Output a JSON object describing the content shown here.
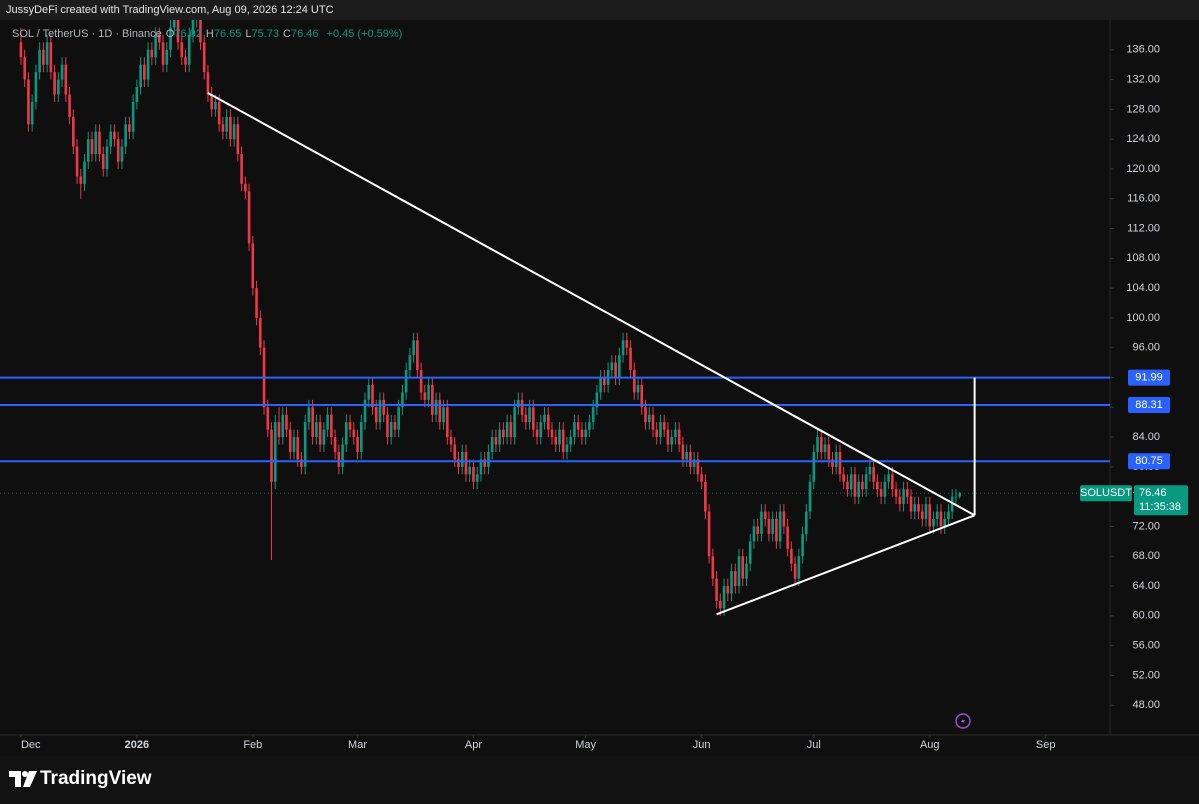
{
  "header": {
    "text": "JussyDeFi created with TradingView.com, Aug 09, 2026 12:24 UTC"
  },
  "chart_data": {
    "type": "candlestick",
    "symbol": "SOL / TetherUS · 1D · Binance",
    "legend": [
      {
        "label": "O",
        "value": 76.02
      },
      {
        "label": "H",
        "value": 76.65
      },
      {
        "label": "L",
        "value": 75.73
      },
      {
        "label": "C",
        "value": 76.46
      }
    ],
    "change": "+0.45 (+0.59%)",
    "up_color": "#089981",
    "down_color": "#f23645",
    "ylim": [
      44,
      140
    ],
    "xlim": [
      -5.6,
      291.2
    ],
    "yticks": [
      {
        "value": 48,
        "label": "48.00"
      },
      {
        "value": 52,
        "label": "52.00"
      },
      {
        "value": 56,
        "label": "56.00"
      },
      {
        "value": 60,
        "label": "60.00"
      },
      {
        "value": 64,
        "label": "64.00"
      },
      {
        "value": 68,
        "label": "68.00"
      },
      {
        "value": 72,
        "label": "72.00"
      },
      {
        "value": 76,
        "label": "76.00"
      },
      {
        "value": 80,
        "label": "80.00"
      },
      {
        "value": 84,
        "label": "84.00"
      },
      {
        "value": 88,
        "label": "88.00"
      },
      {
        "value": 92,
        "label": "92.00"
      },
      {
        "value": 96,
        "label": "96.00"
      },
      {
        "value": 100,
        "label": "100.00"
      },
      {
        "value": 104,
        "label": "104.00"
      },
      {
        "value": 108,
        "label": "108.00"
      },
      {
        "value": 112,
        "label": "112.00"
      },
      {
        "value": 116,
        "label": "116.00"
      },
      {
        "value": 120,
        "label": "120.00"
      },
      {
        "value": 124,
        "label": "124.00"
      },
      {
        "value": 128,
        "label": "128.00"
      },
      {
        "value": 132,
        "label": "132.00"
      },
      {
        "value": 136,
        "label": "136.00"
      }
    ],
    "xticks": [
      {
        "value": 0,
        "label": "Dec"
      },
      {
        "value": 31,
        "label": "2026"
      },
      {
        "value": 62,
        "label": "Feb"
      },
      {
        "value": 90,
        "label": "Mar"
      },
      {
        "value": 121,
        "label": "Apr"
      },
      {
        "value": 151,
        "label": "May"
      },
      {
        "value": 182,
        "label": "Jun"
      },
      {
        "value": 212,
        "label": "Jul"
      },
      {
        "value": 243,
        "label": "Aug"
      },
      {
        "value": 274,
        "label": "Sep"
      }
    ],
    "levels": [
      91.99,
      88.31,
      80.75
    ],
    "level_color": "#2962ff",
    "trendlines": [
      [
        [
          50,
          130.2
        ],
        [
          255,
          73.5
        ]
      ],
      [
        [
          186,
          60.2
        ],
        [
          255,
          73.5
        ]
      ],
      [
        [
          255,
          91.99
        ],
        [
          255,
          73.5
        ]
      ]
    ],
    "last_price": {
      "symbol": "SOLUSDT",
      "value": 76.46,
      "countdown": "11:35:38"
    },
    "ohlc": [
      [
        137,
        139,
        134,
        135
      ],
      [
        135,
        136,
        131,
        132
      ],
      [
        132,
        133,
        125,
        126
      ],
      [
        126,
        130,
        125,
        129
      ],
      [
        129,
        134,
        128,
        133
      ],
      [
        133,
        137,
        132,
        136
      ],
      [
        136,
        137,
        133,
        134
      ],
      [
        134,
        138,
        133,
        137
      ],
      [
        137,
        138,
        132,
        133
      ],
      [
        133,
        134,
        129,
        130
      ],
      [
        130,
        133,
        129,
        132
      ],
      [
        132,
        135,
        131,
        134
      ],
      [
        134,
        135,
        129,
        130
      ],
      [
        130,
        131,
        126,
        127
      ],
      [
        127,
        128,
        122,
        123
      ],
      [
        123,
        124,
        118,
        119
      ],
      [
        119,
        120,
        116,
        118
      ],
      [
        118,
        122,
        117,
        121
      ],
      [
        121,
        125,
        120,
        124
      ],
      [
        124,
        125,
        121,
        122
      ],
      [
        122,
        126,
        121,
        125
      ],
      [
        125,
        126,
        121,
        122
      ],
      [
        122,
        123,
        119,
        120
      ],
      [
        120,
        124,
        119,
        123
      ],
      [
        123,
        126,
        122,
        125
      ],
      [
        125,
        126,
        123,
        124
      ],
      [
        124,
        125,
        120,
        121
      ],
      [
        121,
        124,
        120,
        123
      ],
      [
        123,
        127,
        122,
        126
      ],
      [
        126,
        127,
        124,
        125
      ],
      [
        125,
        130,
        124,
        129
      ],
      [
        129,
        132,
        128,
        131
      ],
      [
        131,
        135,
        130,
        134
      ],
      [
        134,
        135,
        131,
        132
      ],
      [
        132,
        137,
        131,
        136
      ],
      [
        136,
        137,
        134,
        135
      ],
      [
        135,
        139,
        134,
        138
      ],
      [
        138,
        139,
        136,
        137
      ],
      [
        137,
        138,
        133,
        134
      ],
      [
        134,
        137,
        133,
        136
      ],
      [
        136,
        140,
        135,
        139
      ],
      [
        139,
        141,
        138,
        140
      ],
      [
        140,
        141,
        136,
        137
      ],
      [
        137,
        138,
        134,
        135
      ],
      [
        135,
        136,
        133,
        134
      ],
      [
        134,
        139,
        133,
        138
      ],
      [
        138,
        141,
        137,
        140
      ],
      [
        140,
        142,
        139,
        141
      ],
      [
        141,
        142,
        136,
        137
      ],
      [
        137,
        138,
        132,
        133
      ],
      [
        133,
        134,
        129,
        130
      ],
      [
        130,
        131,
        127,
        128
      ],
      [
        128,
        130,
        127,
        129
      ],
      [
        129,
        130,
        125,
        126
      ],
      [
        126,
        127,
        124,
        125
      ],
      [
        125,
        128,
        124,
        127
      ],
      [
        127,
        128,
        123,
        124
      ],
      [
        124,
        127,
        123,
        126
      ],
      [
        126,
        127,
        121,
        122
      ],
      [
        122,
        123,
        117,
        118
      ],
      [
        118,
        119,
        116,
        117
      ],
      [
        117,
        118,
        109,
        110
      ],
      [
        110,
        111,
        103,
        104
      ],
      [
        104,
        105,
        99,
        100
      ],
      [
        100,
        101,
        95,
        96
      ],
      [
        96,
        97,
        87,
        88
      ],
      [
        88,
        89,
        84,
        85
      ],
      [
        85,
        86,
        67.5,
        78
      ],
      [
        78,
        87,
        77,
        86
      ],
      [
        86,
        88,
        83,
        84
      ],
      [
        84,
        88,
        83,
        87
      ],
      [
        87,
        88,
        84,
        85
      ],
      [
        85,
        86,
        81,
        82
      ],
      [
        82,
        85,
        81,
        84
      ],
      [
        84,
        85,
        80,
        81
      ],
      [
        81,
        82,
        79,
        80
      ],
      [
        80,
        87,
        79,
        86
      ],
      [
        86,
        89,
        85,
        88
      ],
      [
        88,
        89,
        83,
        84
      ],
      [
        84,
        87,
        83,
        86
      ],
      [
        86,
        87,
        82,
        83
      ],
      [
        83,
        86,
        82,
        85
      ],
      [
        85,
        88,
        84,
        87
      ],
      [
        87,
        88,
        83,
        84
      ],
      [
        84,
        85,
        81,
        82
      ],
      [
        82,
        83,
        79,
        80
      ],
      [
        80,
        84,
        79,
        83
      ],
      [
        83,
        87,
        82,
        86
      ],
      [
        86,
        87,
        84,
        85
      ],
      [
        85,
        86,
        83,
        84
      ],
      [
        84,
        85,
        81,
        82
      ],
      [
        82,
        87,
        81,
        86
      ],
      [
        86,
        90,
        85,
        89
      ],
      [
        89,
        92,
        88,
        91
      ],
      [
        91,
        92,
        87,
        88
      ],
      [
        88,
        89,
        85,
        86
      ],
      [
        86,
        90,
        85,
        89
      ],
      [
        89,
        90,
        86,
        87
      ],
      [
        87,
        88,
        83,
        84
      ],
      [
        84,
        87,
        83,
        86
      ],
      [
        86,
        87,
        84,
        85
      ],
      [
        85,
        89,
        84,
        88
      ],
      [
        88,
        91,
        87,
        90
      ],
      [
        90,
        94,
        89,
        93
      ],
      [
        93,
        96,
        92,
        95
      ],
      [
        95,
        98,
        94,
        97
      ],
      [
        97,
        98,
        92,
        93
      ],
      [
        93,
        94,
        89,
        90
      ],
      [
        90,
        91,
        88,
        89
      ],
      [
        89,
        92,
        88,
        91
      ],
      [
        91,
        92,
        86,
        87
      ],
      [
        87,
        90,
        86,
        89
      ],
      [
        89,
        90,
        85,
        86
      ],
      [
        86,
        89,
        85,
        88
      ],
      [
        88,
        89,
        83,
        84
      ],
      [
        84,
        85,
        82,
        83
      ],
      [
        83,
        84,
        80,
        81
      ],
      [
        81,
        82,
        79,
        80
      ],
      [
        80,
        83,
        79,
        82
      ],
      [
        82,
        83,
        78,
        79
      ],
      [
        79,
        81,
        78,
        80
      ],
      [
        80,
        81,
        77,
        78
      ],
      [
        78,
        80,
        77,
        79
      ],
      [
        79,
        82,
        78,
        81
      ],
      [
        81,
        82,
        79,
        80
      ],
      [
        80,
        83,
        79,
        82
      ],
      [
        82,
        85,
        81,
        84
      ],
      [
        84,
        85,
        82,
        83
      ],
      [
        83,
        86,
        82,
        85
      ],
      [
        85,
        86,
        83,
        84
      ],
      [
        84,
        87,
        83,
        86
      ],
      [
        86,
        87,
        83,
        84
      ],
      [
        84,
        89,
        83,
        88
      ],
      [
        88,
        90,
        87,
        89
      ],
      [
        89,
        90,
        86,
        87
      ],
      [
        87,
        88,
        85,
        86
      ],
      [
        86,
        89,
        85,
        88
      ],
      [
        88,
        89,
        84,
        85
      ],
      [
        85,
        86,
        83,
        84
      ],
      [
        84,
        87,
        83,
        86
      ],
      [
        86,
        88,
        85,
        87
      ],
      [
        87,
        88,
        84,
        85
      ],
      [
        85,
        86,
        83,
        84
      ],
      [
        84,
        85,
        82,
        83
      ],
      [
        83,
        86,
        82,
        85
      ],
      [
        85,
        86,
        81,
        82
      ],
      [
        82,
        84,
        81,
        83
      ],
      [
        83,
        85,
        82,
        84
      ],
      [
        84,
        87,
        83,
        86
      ],
      [
        86,
        87,
        84,
        85
      ],
      [
        85,
        86,
        83,
        84
      ],
      [
        84,
        86,
        83,
        85
      ],
      [
        85,
        87,
        84,
        86
      ],
      [
        86,
        89,
        85,
        88
      ],
      [
        88,
        91,
        87,
        90
      ],
      [
        90,
        93,
        89,
        92
      ],
      [
        92,
        93,
        90,
        91
      ],
      [
        91,
        94,
        90,
        93
      ],
      [
        93,
        95,
        92,
        94
      ],
      [
        94,
        95,
        91,
        92
      ],
      [
        92,
        96,
        91,
        95
      ],
      [
        95,
        98,
        94,
        97
      ],
      [
        97,
        98,
        95,
        96
      ],
      [
        96,
        97,
        92,
        93
      ],
      [
        93,
        94,
        89,
        90
      ],
      [
        90,
        92,
        89,
        91
      ],
      [
        91,
        92,
        87,
        88
      ],
      [
        88,
        89,
        85,
        86
      ],
      [
        86,
        88,
        85,
        87
      ],
      [
        87,
        88,
        84,
        85
      ],
      [
        85,
        86,
        83,
        84
      ],
      [
        84,
        87,
        83,
        86
      ],
      [
        86,
        87,
        84,
        85
      ],
      [
        85,
        86,
        82,
        83
      ],
      [
        83,
        85,
        82,
        84
      ],
      [
        84,
        86,
        83,
        85
      ],
      [
        85,
        86,
        82,
        83
      ],
      [
        83,
        84,
        80,
        81
      ],
      [
        81,
        83,
        80,
        82
      ],
      [
        82,
        83,
        79,
        80
      ],
      [
        80,
        82,
        79,
        81
      ],
      [
        81,
        82,
        78,
        79
      ],
      [
        79,
        80,
        77,
        78
      ],
      [
        78,
        79,
        73,
        74
      ],
      [
        74,
        75,
        67,
        68
      ],
      [
        68,
        69,
        64,
        65
      ],
      [
        65,
        66,
        61,
        62
      ],
      [
        62,
        63,
        60,
        61
      ],
      [
        61,
        65,
        60,
        64
      ],
      [
        64,
        65,
        62,
        63
      ],
      [
        63,
        67,
        62,
        66
      ],
      [
        66,
        67,
        63,
        64
      ],
      [
        64,
        69,
        63,
        68
      ],
      [
        68,
        69,
        64,
        65
      ],
      [
        65,
        68,
        64,
        67
      ],
      [
        67,
        71,
        66,
        70
      ],
      [
        70,
        73,
        69,
        72
      ],
      [
        72,
        73,
        70,
        71
      ],
      [
        71,
        75,
        70,
        74
      ],
      [
        74,
        75,
        72,
        73
      ],
      [
        73,
        74,
        70,
        71
      ],
      [
        71,
        74,
        70,
        73
      ],
      [
        73,
        74,
        69,
        70
      ],
      [
        70,
        75,
        69,
        74
      ],
      [
        74,
        75,
        71,
        72
      ],
      [
        72,
        73,
        68,
        69
      ],
      [
        69,
        70,
        66,
        67
      ],
      [
        67,
        68,
        64,
        65
      ],
      [
        65,
        69,
        64,
        68
      ],
      [
        68,
        72,
        67,
        71
      ],
      [
        71,
        75,
        70,
        74
      ],
      [
        74,
        79,
        73,
        78
      ],
      [
        78,
        83,
        77,
        82
      ],
      [
        82,
        85,
        81,
        84
      ],
      [
        84,
        85,
        81,
        82
      ],
      [
        82,
        84,
        81,
        83
      ],
      [
        83,
        84,
        80,
        81
      ],
      [
        81,
        82,
        79,
        80
      ],
      [
        80,
        83,
        79,
        82
      ],
      [
        82,
        83,
        78,
        79
      ],
      [
        79,
        80,
        77,
        78
      ],
      [
        78,
        79,
        76,
        77
      ],
      [
        77,
        80,
        76,
        79
      ],
      [
        79,
        80,
        75,
        76
      ],
      [
        76,
        79,
        75,
        78
      ],
      [
        78,
        79,
        76,
        77
      ],
      [
        77,
        80,
        76,
        79
      ],
      [
        79,
        81,
        78,
        80
      ],
      [
        80,
        81,
        77,
        78
      ],
      [
        78,
        79,
        76,
        77
      ],
      [
        77,
        78,
        75,
        76
      ],
      [
        76,
        79,
        75,
        78
      ],
      [
        78,
        80,
        77,
        79
      ],
      [
        79,
        80,
        76,
        77
      ],
      [
        77,
        78,
        75,
        76
      ],
      [
        76,
        77,
        74,
        75
      ],
      [
        75,
        78,
        74,
        77
      ],
      [
        77,
        78,
        75,
        76
      ],
      [
        76,
        77,
        73,
        74
      ],
      [
        74,
        76,
        73,
        75
      ],
      [
        75,
        76,
        73,
        74
      ],
      [
        74,
        75,
        72,
        73
      ],
      [
        73,
        76,
        72,
        75
      ],
      [
        75,
        76,
        71,
        72
      ],
      [
        72,
        74,
        71,
        73
      ],
      [
        73,
        75,
        72,
        74
      ],
      [
        74,
        75,
        71,
        72
      ],
      [
        72,
        74,
        71,
        73
      ],
      [
        73,
        75,
        72,
        74
      ],
      [
        74,
        77,
        73,
        76
      ],
      [
        76,
        77,
        75,
        76.01
      ],
      [
        76.02,
        76.65,
        75.73,
        76.46
      ]
    ]
  },
  "footer": {
    "brand": "TradingView"
  }
}
